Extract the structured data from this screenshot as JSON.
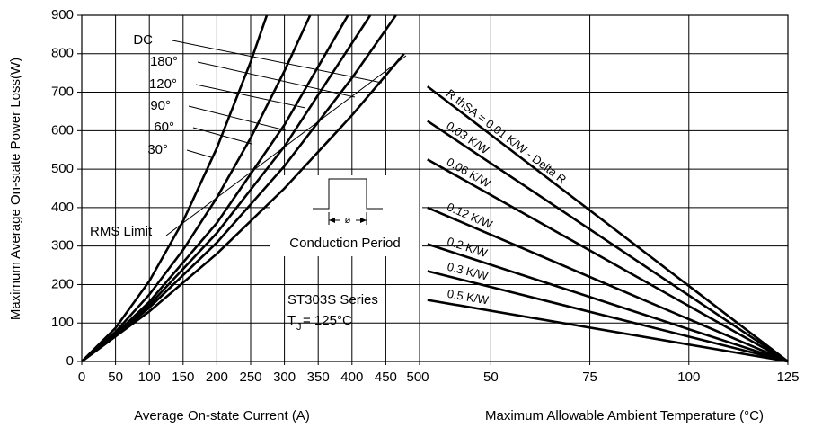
{
  "chart_data": [
    {
      "type": "line",
      "ylabel": "Maximum Average On-state Power Loss(W)",
      "xlabel": "Average On-state Current (A)",
      "xlim": [
        0,
        500
      ],
      "xticks": [
        0,
        50,
        100,
        150,
        200,
        250,
        300,
        350,
        400,
        450,
        500
      ],
      "ylim": [
        0,
        900
      ],
      "yticks": [
        0,
        100,
        200,
        300,
        400,
        500,
        600,
        700,
        800,
        900
      ],
      "grid": true,
      "color": "#000000",
      "series": [
        {
          "name": "DC",
          "x": [
            0,
            100,
            200,
            300,
            400,
            477
          ],
          "values": [
            0,
            130,
            280,
            450,
            640,
            800
          ]
        },
        {
          "name": "180°",
          "x": [
            0,
            50,
            100,
            200,
            300,
            400,
            465
          ],
          "values": [
            0,
            66,
            140,
            309,
            508,
            737,
            900
          ]
        },
        {
          "name": "120°",
          "x": [
            0,
            50,
            100,
            200,
            300,
            427
          ],
          "values": [
            0,
            69,
            147,
            334,
            559,
            900
          ]
        },
        {
          "name": "90°",
          "x": [
            0,
            50,
            100,
            200,
            300,
            394
          ],
          "values": [
            0,
            71,
            155,
            360,
            615,
            900
          ]
        },
        {
          "name": "60°",
          "x": [
            0,
            50,
            100,
            150,
            200,
            250,
            300,
            338
          ],
          "values": [
            0,
            77,
            174,
            290,
            426,
            581,
            755,
            900
          ]
        },
        {
          "name": "30°",
          "x": [
            0,
            50,
            100,
            150,
            200,
            250,
            274
          ],
          "values": [
            0,
            87,
            209,
            365,
            555,
            779,
            900
          ]
        }
      ],
      "annotations": [
        "RMS Limit",
        "Conduction Period",
        "ø",
        "ST303S Series",
        "T",
        "J",
        " = 125°C"
      ]
    },
    {
      "type": "line",
      "xlabel": "Maximum Allowable Ambient Temperature (°C)",
      "xlim": [
        32,
        125
      ],
      "xticks": [
        50,
        75,
        100,
        125
      ],
      "ylim": [
        0,
        900
      ],
      "grid": true,
      "color": "#000000",
      "series": [
        {
          "name": "R thSA = 0.01 K/W - Delta R",
          "x": [
            34,
            125
          ],
          "values": [
            715,
            0
          ]
        },
        {
          "name": "0.03 K/W",
          "x": [
            34,
            125
          ],
          "values": [
            625,
            0
          ]
        },
        {
          "name": "0.06 K/W",
          "x": [
            34,
            125
          ],
          "values": [
            525,
            0
          ]
        },
        {
          "name": "0.12 K/W",
          "x": [
            34,
            125
          ],
          "values": [
            400,
            0
          ]
        },
        {
          "name": "0.2 K/W",
          "x": [
            34,
            125
          ],
          "values": [
            305,
            0
          ]
        },
        {
          "name": "0.3 K/W",
          "x": [
            34,
            125
          ],
          "values": [
            235,
            0
          ]
        },
        {
          "name": "0.5 K/W",
          "x": [
            34,
            125
          ],
          "values": [
            160,
            0
          ]
        }
      ]
    }
  ]
}
